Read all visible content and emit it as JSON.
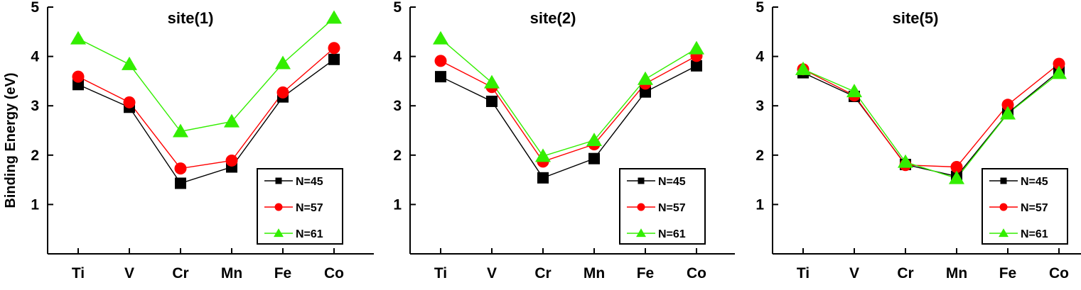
{
  "chart_data": [
    {
      "type": "line",
      "title": "site(1)",
      "xlabel": "",
      "ylabel": "Binding Energy (eV)",
      "categories": [
        "Ti",
        "V",
        "Cr",
        "Mn",
        "Fe",
        "Co"
      ],
      "ylim": [
        0,
        5
      ],
      "yticks": [
        1,
        2,
        3,
        4,
        5
      ],
      "grid": false,
      "legend_position": "bottom-right",
      "series": [
        {
          "name": "N=45",
          "color": "#000000",
          "marker": "square",
          "values": [
            3.43,
            2.97,
            1.43,
            1.76,
            3.18,
            3.94
          ]
        },
        {
          "name": "N=57",
          "color": "#ff0000",
          "marker": "circle",
          "values": [
            3.59,
            3.07,
            1.73,
            1.89,
            3.27,
            4.17
          ]
        },
        {
          "name": "N=61",
          "color": "#33ee00",
          "marker": "triangle",
          "values": [
            4.36,
            3.84,
            2.48,
            2.68,
            3.86,
            4.78
          ]
        }
      ]
    },
    {
      "type": "line",
      "title": "site(2)",
      "xlabel": "",
      "ylabel": "",
      "categories": [
        "Ti",
        "V",
        "Cr",
        "Mn",
        "Fe",
        "Co"
      ],
      "ylim": [
        0,
        5
      ],
      "yticks": [
        1,
        2,
        3,
        4,
        5
      ],
      "grid": false,
      "legend_position": "bottom-right",
      "series": [
        {
          "name": "N=45",
          "color": "#000000",
          "marker": "square",
          "values": [
            3.59,
            3.09,
            1.54,
            1.93,
            3.28,
            3.81
          ]
        },
        {
          "name": "N=57",
          "color": "#ff0000",
          "marker": "circle",
          "values": [
            3.91,
            3.38,
            1.87,
            2.22,
            3.45,
            4.01
          ]
        },
        {
          "name": "N=61",
          "color": "#33ee00",
          "marker": "triangle",
          "values": [
            4.36,
            3.47,
            1.98,
            2.3,
            3.54,
            4.16
          ]
        }
      ]
    },
    {
      "type": "line",
      "title": "site(5)",
      "xlabel": "",
      "ylabel": "",
      "categories": [
        "Ti",
        "V",
        "Cr",
        "Mn",
        "Fe",
        "Co"
      ],
      "ylim": [
        0,
        5
      ],
      "yticks": [
        1,
        2,
        3,
        4,
        5
      ],
      "grid": false,
      "legend_position": "bottom-right",
      "series": [
        {
          "name": "N=45",
          "color": "#000000",
          "marker": "square",
          "values": [
            3.67,
            3.19,
            1.81,
            1.57,
            2.85,
            3.7
          ]
        },
        {
          "name": "N=57",
          "color": "#ff0000",
          "marker": "circle",
          "values": [
            3.74,
            3.21,
            1.8,
            1.76,
            3.02,
            3.85
          ]
        },
        {
          "name": "N=61",
          "color": "#33ee00",
          "marker": "triangle",
          "values": [
            3.74,
            3.29,
            1.86,
            1.53,
            2.84,
            3.66
          ]
        }
      ]
    }
  ]
}
